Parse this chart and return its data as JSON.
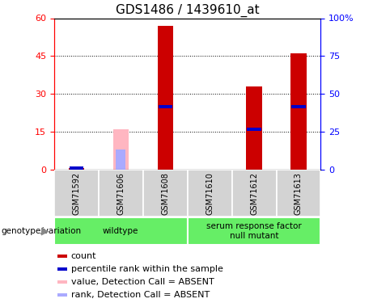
{
  "title": "GDS1486 / 1439610_at",
  "samples": [
    "GSM71592",
    "GSM71606",
    "GSM71608",
    "GSM71610",
    "GSM71612",
    "GSM71613"
  ],
  "red_values": [
    0.6,
    0,
    57,
    0,
    33,
    46
  ],
  "blue_values": [
    0.6,
    0,
    25,
    0,
    16,
    25
  ],
  "pink_values": [
    0,
    16,
    0,
    0,
    0,
    0
  ],
  "lightblue_values": [
    0,
    8,
    0,
    0,
    0,
    0
  ],
  "ylim_left": [
    0,
    60
  ],
  "ylim_right": [
    0,
    100
  ],
  "yticks_left": [
    0,
    15,
    30,
    45,
    60
  ],
  "yticks_right": [
    0,
    25,
    50,
    75,
    100
  ],
  "yticklabels_right": [
    "0",
    "25",
    "50",
    "75",
    "100%"
  ],
  "genotype_groups": [
    {
      "label": "wildtype",
      "samples": [
        0,
        1,
        2
      ]
    },
    {
      "label": "serum response factor\nnull mutant",
      "samples": [
        3,
        4,
        5
      ]
    }
  ],
  "genotype_label": "genotype/variation",
  "bg_color_genotype": "#66ee66",
  "legend_items": [
    {
      "color": "#cc0000",
      "label": "count"
    },
    {
      "color": "#0000cc",
      "label": "percentile rank within the sample"
    },
    {
      "color": "#ffb6c1",
      "label": "value, Detection Call = ABSENT"
    },
    {
      "color": "#aaaaff",
      "label": "rank, Detection Call = ABSENT"
    }
  ],
  "red_color": "#cc0000",
  "blue_color": "#0000cc",
  "pink_color": "#ffb6c1",
  "lightblue_color": "#aaaaff",
  "bar_width": 0.35,
  "blue_bar_height": 1.2,
  "title_fontsize": 11,
  "tick_fontsize": 8,
  "legend_fontsize": 8
}
